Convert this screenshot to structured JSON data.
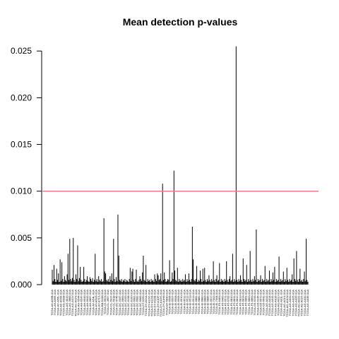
{
  "chart_data": {
    "type": "bar",
    "title": "Mean detection p-values",
    "xlabel": "",
    "ylabel": "",
    "ylim": [
      0,
      0.026
    ],
    "yticks": [
      "0.000",
      "0.005",
      "0.010",
      "0.015",
      "0.020",
      "0.025"
    ],
    "ytick_values": [
      0,
      0.005,
      0.01,
      0.015,
      0.02,
      0.025
    ],
    "threshold": {
      "value": 0.01,
      "color": "#f08080"
    },
    "bar_color": "#000000",
    "grid": false,
    "legend": "none",
    "sample_labels": [
      "TCGA-A6-A56B-01A",
      "TCGA-A6-A565-01A",
      "TCGA-AF-A56L-01A",
      "TCGA-AF-A56K-01A",
      "TCGA-AG-A008-01A",
      "TCGA-AG-4015-01A",
      "TCGA-AG-3883-01A",
      "TCGA-AG-A01Y-01A",
      "TCGA-AG-A02N-01A",
      "TCGA-AH-6544-01A",
      "TCGA-AH-6547-01A",
      "TCGA-AH-6549-01A",
      "TCGA-AH-6643-01A",
      "TCGA-AH-6897-01A",
      "TCGA-AY-A54L-01A",
      "TCGA-AY-A69D-01A",
      "TCGA-AY-A71X-01A",
      "TCGA-BM-6198-01A",
      "TCGA-CI-6624-01A",
      "TCGA-CL-4957-01A",
      "TCGA-CL-5917-01A",
      "TCGA-CL-5918-01A",
      "TCGA-DC-4745-01A",
      "TCGA-DC-5337-01A",
      "TCGA-DC-5869-01A",
      "TCGA-DC-6155-01A",
      "TCGA-DC-6158-01A",
      "TCGA-DC-6160-01A",
      "TCGA-DC-6681-01A",
      "TCGA-DC-6682-01A",
      "TCGA-DC-6683-01A",
      "TCGA-DT-5265-01A",
      "TCGA-DY-A0XA-01A",
      "TCGA-DY-A1DC-01A",
      "TCGA-DY-A1DD-01A",
      "TCGA-DY-A1DE-01A",
      "TCGA-DY-A1DF-01A",
      "TCGA-DY-A1DG-01A",
      "TCGA-DY-A1H8-01A",
      "TCGA-EF-5830-01A",
      "TCGA-EI-6506-01A",
      "TCGA-EI-6507-01A",
      "TCGA-EI-6508-01A",
      "TCGA-EI-6509-01A",
      "TCGA-EI-6510-01A",
      "TCGA-EI-6511-01A",
      "TCGA-EI-6512-01A",
      "TCGA-EI-6513-01A",
      "TCGA-EI-6514-01A",
      "TCGA-EI-6881-01A",
      "TCGA-EI-6882-01A",
      "TCGA-EI-6883-01A",
      "TCGA-EI-6884-01A",
      "TCGA-EI-6885-01A",
      "TCGA-EI-6917-01A",
      "TCGA-EI-7002-01A",
      "TCGA-EI-7004-01A",
      "TCGA-F5-6464-01A",
      "TCGA-F5-6465-01A",
      "TCGA-F5-6571-01A",
      "TCGA-F5-6702-01A",
      "TCGA-F5-6810-01A",
      "TCGA-F5-6811-01A",
      "TCGA-F5-6812-01A",
      "TCGA-F5-6813-01A",
      "TCGA-F5-6814-01A",
      "TCGA-F5-6861-01A",
      "TCGA-F5-6863-01A",
      "TCGA-F5-6864-01A",
      "TCGA-G5-6233-01A",
      "TCGA-G5-6235-01A",
      "TCGA-G5-6572-01A",
      "TCGA-G5-6641-01A",
      "TCGA-AG-A011-01A",
      "TCGA-AG-A014-01A",
      "TCGA-AG-A015-01A",
      "TCGA-AG-A016-01A",
      "TCGA-AG-A01J-01A",
      "TCGA-AG-A01L-01A",
      "TCGA-AG-A01N-01A",
      "TCGA-AG-A01W-01A",
      "TCGA-AG-A020-01A",
      "TCGA-AG-A025-01A",
      "TCGA-AG-A026-01A",
      "TCGA-AG-A02G-01A",
      "TCGA-AG-A02X-01A",
      "TCGA-AG-A032-01A",
      "TCGA-AG-A036-01A"
    ],
    "tallest_values": [
      0.0108,
      0.0122,
      0.0255,
      0.0075,
      0.0071,
      0.0062,
      0.0059
    ],
    "values": [
      0.0016,
      0.0004,
      0.0021,
      0.0006,
      0.0003,
      0.0017,
      0.0005,
      0.0012,
      0.0003,
      0.0027,
      0.0004,
      0.0024,
      0.0006,
      0.0003,
      0.0009,
      0.0005,
      0.0004,
      0.0011,
      0.0033,
      0.0005,
      0.0049,
      0.0006,
      0.0004,
      0.0007,
      0.005,
      0.0005,
      0.0003,
      0.0011,
      0.0006,
      0.0042,
      0.0004,
      0.0007,
      0.0019,
      0.0005,
      0.0003,
      0.0004,
      0.0019,
      0.0006,
      0.0003,
      0.0005,
      0.0009,
      0.0004,
      0.0003,
      0.0008,
      0.0006,
      0.0004,
      0.0007,
      0.0003,
      0.0005,
      0.0033,
      0.0004,
      0.0006,
      0.0003,
      0.0009,
      0.0005,
      0.0004,
      0.0006,
      0.0003,
      0.0004,
      0.0071,
      0.0014,
      0.0012,
      0.0005,
      0.0004,
      0.0006,
      0.0003,
      0.0009,
      0.0005,
      0.0012,
      0.0004,
      0.0049,
      0.0006,
      0.0003,
      0.0008,
      0.0004,
      0.0075,
      0.0031,
      0.0005,
      0.0004,
      0.0006,
      0.0003,
      0.0005,
      0.0004,
      0.0006,
      0.0003,
      0.0005,
      0.0004,
      0.0003,
      0.0006,
      0.0018,
      0.0004,
      0.0014,
      0.0017,
      0.0005,
      0.0003,
      0.0006,
      0.0016,
      0.0004,
      0.0003,
      0.0005,
      0.0009,
      0.0006,
      0.0004,
      0.0013,
      0.0031,
      0.0005,
      0.0004,
      0.0021,
      0.0003,
      0.0006,
      0.0004,
      0.0005,
      0.0003,
      0.0006,
      0.0004,
      0.0005,
      0.0003,
      0.0011,
      0.0006,
      0.0004,
      0.0012,
      0.001,
      0.0005,
      0.0006,
      0.0012,
      0.0004,
      0.0108,
      0.0005,
      0.0013,
      0.0006,
      0.0003,
      0.0004,
      0.0006,
      0.0005,
      0.0026,
      0.0003,
      0.0004,
      0.0013,
      0.0006,
      0.0122,
      0.0015,
      0.0005,
      0.0004,
      0.0018,
      0.0003,
      0.0006,
      0.0004,
      0.0005,
      0.0003,
      0.0006,
      0.0004,
      0.0005,
      0.0011,
      0.0003,
      0.0006,
      0.0004,
      0.0012,
      0.0005,
      0.0003,
      0.0006,
      0.0062,
      0.0027,
      0.0005,
      0.0004,
      0.0006,
      0.002,
      0.0003,
      0.0005,
      0.0004,
      0.0015,
      0.0006,
      0.0003,
      0.0017,
      0.0004,
      0.0018,
      0.0005,
      0.0003,
      0.0006,
      0.0004,
      0.001,
      0.0005,
      0.0003,
      0.0006,
      0.0004,
      0.0025,
      0.0005,
      0.0003,
      0.0006,
      0.001,
      0.0004,
      0.0005,
      0.0023,
      0.0003,
      0.0006,
      0.0004,
      0.0005,
      0.0003,
      0.0006,
      0.0004,
      0.0025,
      0.0005,
      0.0003,
      0.0006,
      0.0009,
      0.0004,
      0.0005,
      0.0033,
      0.0003,
      0.0006,
      0.0004,
      0.0255,
      0.0005,
      0.0003,
      0.0006,
      0.0004,
      0.001,
      0.0005,
      0.0003,
      0.0028,
      0.0006,
      0.0004,
      0.0005,
      0.0021,
      0.0003,
      0.0006,
      0.0004,
      0.0036,
      0.0005,
      0.0003,
      0.0006,
      0.0004,
      0.0009,
      0.0005,
      0.0059,
      0.0003,
      0.0006,
      0.0004,
      0.0005,
      0.001,
      0.0003,
      0.0006,
      0.0004,
      0.0005,
      0.002,
      0.0003,
      0.0006,
      0.0004,
      0.0005,
      0.0015,
      0.0003,
      0.0006,
      0.0004,
      0.0013,
      0.0005,
      0.0019,
      0.0003,
      0.0006,
      0.0004,
      0.0005,
      0.003,
      0.0003,
      0.0006,
      0.0004,
      0.0005,
      0.0014,
      0.0003,
      0.0006,
      0.0004,
      0.0018,
      0.0005,
      0.0003,
      0.0006,
      0.0004,
      0.0005,
      0.0011,
      0.0003,
      0.0028,
      0.0006,
      0.0004,
      0.0036,
      0.0005,
      0.0003,
      0.0006,
      0.0017,
      0.0004,
      0.0005,
      0.0003,
      0.0006,
      0.0014,
      0.0004,
      0.0049,
      0.0005,
      0.0003
    ]
  }
}
